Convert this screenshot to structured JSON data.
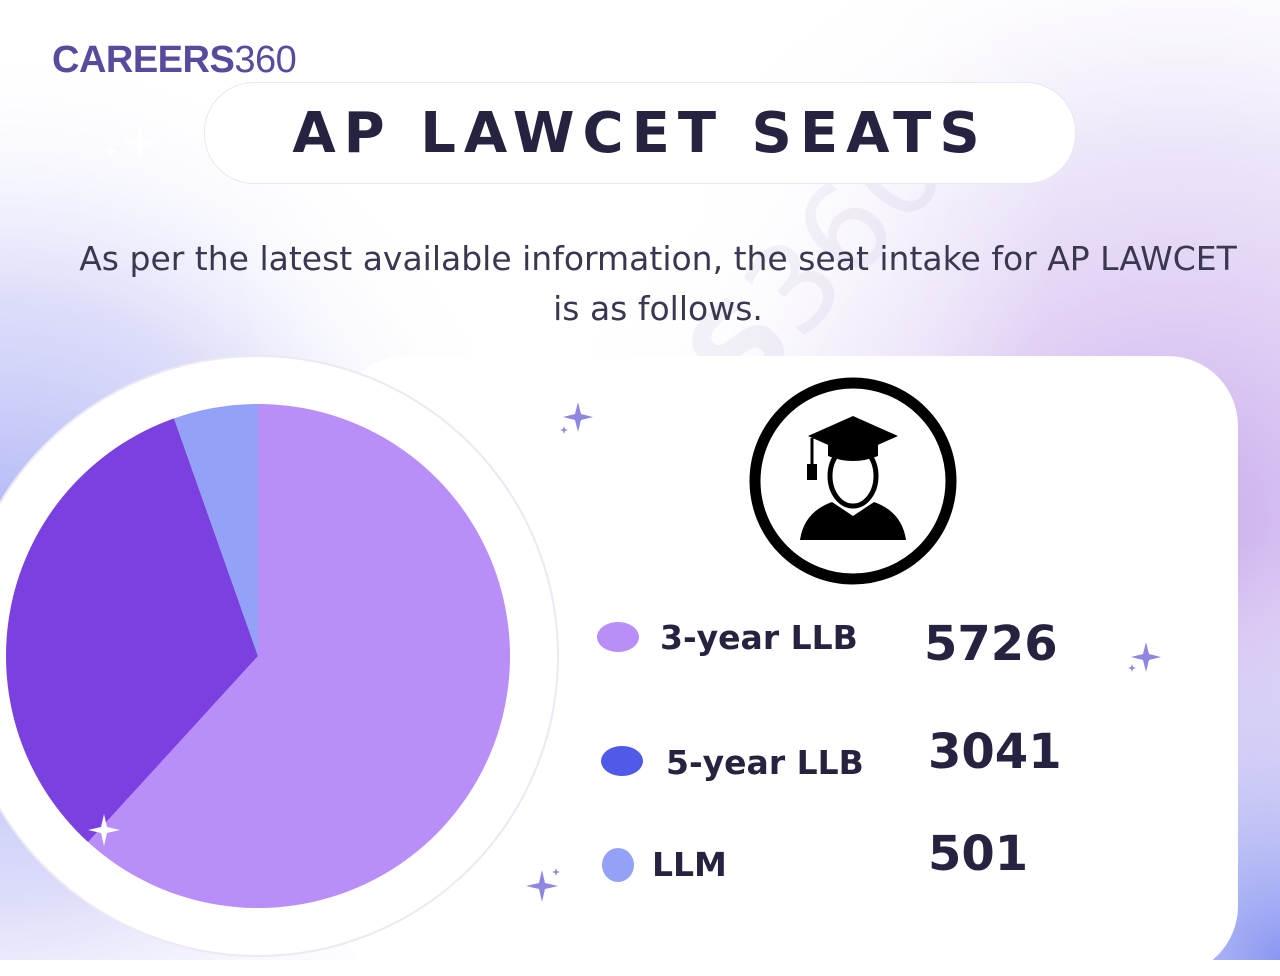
{
  "brand": {
    "name": "CAREERS",
    "number": "360"
  },
  "title": "AP LAWCET SEATS",
  "description": {
    "line1": "As per the latest available information, the seat intake for AP LAWCET",
    "line2": "is as follows."
  },
  "watermark": {
    "name": "CAREERS",
    "number": "360"
  },
  "icons": {
    "graduate": "graduate-icon",
    "sparkle": "sparkle-icon"
  },
  "chart_data": {
    "type": "pie",
    "title": "AP LAWCET SEATS",
    "categories": [
      "3-year LLB",
      "5-year LLB",
      "LLM"
    ],
    "values": [
      5726,
      3041,
      501
    ],
    "value_labels": [
      "5726",
      "3041",
      "501"
    ],
    "colors": [
      "#b98ef8",
      "#7b40e0",
      "#93a2f8"
    ],
    "swatch_colors": [
      "#b98ef8",
      "#4f5ae8",
      "#93a2f8"
    ],
    "legend_position": "right"
  }
}
